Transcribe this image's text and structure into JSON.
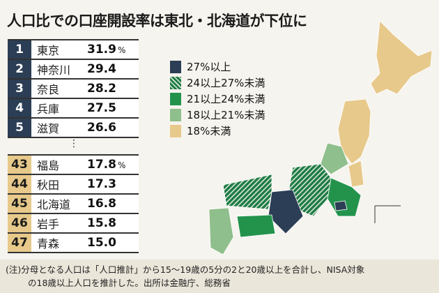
{
  "title": "人口比での口座開設率は東北・北海道が下位に",
  "top5": [
    {
      "rank": "1",
      "name": "東京",
      "value": "31.9",
      "unit": "%"
    },
    {
      "rank": "2",
      "name": "神奈川",
      "value": "29.4"
    },
    {
      "rank": "3",
      "name": "奈良",
      "value": "28.2"
    },
    {
      "rank": "4",
      "name": "兵庫",
      "value": "27.5"
    },
    {
      "rank": "5",
      "name": "滋賀",
      "value": "26.6"
    }
  ],
  "ellipsis": "⋮",
  "bottom5": [
    {
      "rank": "43",
      "name": "福島",
      "value": "17.8",
      "unit": "%"
    },
    {
      "rank": "44",
      "name": "秋田",
      "value": "17.3"
    },
    {
      "rank": "45",
      "name": "北海道",
      "value": "16.8"
    },
    {
      "rank": "46",
      "name": "岩手",
      "value": "15.8"
    },
    {
      "rank": "47",
      "name": "青森",
      "value": "15.0"
    }
  ],
  "legend": [
    {
      "label": "27%以上",
      "color": "#2b3e55"
    },
    {
      "label": "24以上27%未満",
      "color": "#1f7a45",
      "hatched": true
    },
    {
      "label": "21以上24%未満",
      "color": "#23934c"
    },
    {
      "label": "18以上21%未満",
      "color": "#8fbf8c"
    },
    {
      "label": "18%未満",
      "color": "#e7c98b"
    }
  ],
  "note": {
    "line1": "(注)分母となる人口は「人口推計」から15～19歳の5分の2と20歳以上を合計し、NISA対象",
    "line2": "の18歳以上人口を推計した。出所は金融庁、総務省"
  }
}
